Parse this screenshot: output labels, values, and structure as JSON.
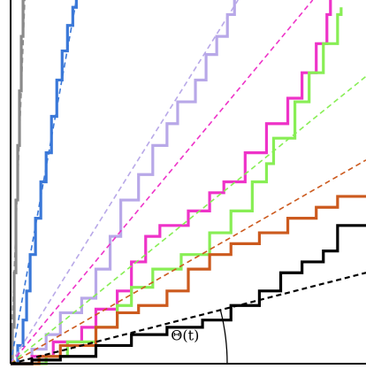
{
  "chart_data": {
    "type": "line",
    "title": "",
    "xlabel": "",
    "ylabel": "",
    "grid": false,
    "legend": "none",
    "xlim": [
      0,
      1
    ],
    "ylim": [
      0,
      1
    ],
    "annotation": {
      "label": "Θ(t)",
      "target_series": 6
    },
    "series": [
      {
        "color": "#8a8a8a",
        "trend": [
          [
            0,
            0
          ],
          [
            0.04,
            1.0
          ]
        ],
        "values": [
          [
            0,
            0
          ],
          [
            0.005,
            0.1
          ],
          [
            0.01,
            0.25
          ],
          [
            0.015,
            0.45
          ],
          [
            0.02,
            0.6
          ],
          [
            0.025,
            0.75
          ],
          [
            0.03,
            0.9
          ],
          [
            0.035,
            1.0
          ]
        ]
      },
      {
        "color": "#3a78d8",
        "trend": [
          [
            0,
            0
          ],
          [
            0.185,
            1.0
          ]
        ],
        "values": [
          [
            0,
            0
          ],
          [
            0.02,
            0.05
          ],
          [
            0.035,
            0.12
          ],
          [
            0.045,
            0.2
          ],
          [
            0.055,
            0.3
          ],
          [
            0.07,
            0.4
          ],
          [
            0.085,
            0.5
          ],
          [
            0.1,
            0.58
          ],
          [
            0.115,
            0.68
          ],
          [
            0.13,
            0.78
          ],
          [
            0.145,
            0.86
          ],
          [
            0.16,
            0.93
          ],
          [
            0.175,
            0.98
          ],
          [
            0.185,
            1.0
          ]
        ]
      },
      {
        "color": "#b8a8e8",
        "trend": [
          [
            0,
            0
          ],
          [
            0.64,
            1.0
          ]
        ],
        "values": [
          [
            0,
            0
          ],
          [
            0.06,
            0.04
          ],
          [
            0.1,
            0.08
          ],
          [
            0.14,
            0.14
          ],
          [
            0.2,
            0.18
          ],
          [
            0.24,
            0.26
          ],
          [
            0.28,
            0.35
          ],
          [
            0.31,
            0.45
          ],
          [
            0.36,
            0.52
          ],
          [
            0.4,
            0.6
          ],
          [
            0.44,
            0.66
          ],
          [
            0.47,
            0.72
          ],
          [
            0.52,
            0.78
          ],
          [
            0.55,
            0.85
          ],
          [
            0.58,
            0.9
          ],
          [
            0.61,
            0.96
          ],
          [
            0.63,
            1.0
          ]
        ]
      },
      {
        "color": "#ee33c8",
        "trend": [
          [
            0,
            0
          ],
          [
            0.85,
            1.0
          ]
        ],
        "values": [
          [
            0,
            0
          ],
          [
            0.06,
            0.02
          ],
          [
            0.12,
            0.06
          ],
          [
            0.2,
            0.1
          ],
          [
            0.24,
            0.15
          ],
          [
            0.3,
            0.2
          ],
          [
            0.34,
            0.28
          ],
          [
            0.38,
            0.35
          ],
          [
            0.42,
            0.38
          ],
          [
            0.5,
            0.42
          ],
          [
            0.56,
            0.47
          ],
          [
            0.6,
            0.5
          ],
          [
            0.66,
            0.58
          ],
          [
            0.72,
            0.66
          ],
          [
            0.78,
            0.73
          ],
          [
            0.82,
            0.8
          ],
          [
            0.86,
            0.88
          ],
          [
            0.89,
            0.96
          ],
          [
            0.9,
            1.0
          ]
        ]
      },
      {
        "color": "#88ee55",
        "trend": [
          [
            0,
            0
          ],
          [
            1.0,
            0.79
          ]
        ],
        "values": [
          [
            0,
            0
          ],
          [
            0.1,
            0.02
          ],
          [
            0.16,
            0.06
          ],
          [
            0.24,
            0.1
          ],
          [
            0.3,
            0.16
          ],
          [
            0.34,
            0.21
          ],
          [
            0.4,
            0.26
          ],
          [
            0.48,
            0.3
          ],
          [
            0.56,
            0.36
          ],
          [
            0.62,
            0.42
          ],
          [
            0.68,
            0.5
          ],
          [
            0.72,
            0.55
          ],
          [
            0.74,
            0.62
          ],
          [
            0.8,
            0.72
          ],
          [
            0.84,
            0.8
          ],
          [
            0.88,
            0.88
          ],
          [
            0.92,
            0.96
          ],
          [
            0.93,
            0.98
          ]
        ]
      },
      {
        "color": "#cc5a1e",
        "trend": [
          [
            0,
            0
          ],
          [
            1.0,
            0.56
          ]
        ],
        "values": [
          [
            0,
            0
          ],
          [
            0.08,
            0.02
          ],
          [
            0.14,
            0.05
          ],
          [
            0.24,
            0.1
          ],
          [
            0.3,
            0.14
          ],
          [
            0.36,
            0.16
          ],
          [
            0.44,
            0.2
          ],
          [
            0.5,
            0.26
          ],
          [
            0.56,
            0.3
          ],
          [
            0.62,
            0.33
          ],
          [
            0.7,
            0.36
          ],
          [
            0.78,
            0.4
          ],
          [
            0.86,
            0.43
          ],
          [
            0.92,
            0.46
          ],
          [
            0.96,
            0.46
          ],
          [
            1.0,
            0.46
          ]
        ]
      },
      {
        "color": "#000000",
        "trend": [
          [
            0,
            0
          ],
          [
            1.0,
            0.25
          ]
        ],
        "values": [
          [
            0,
            0
          ],
          [
            0.06,
            0.01
          ],
          [
            0.14,
            0.02
          ],
          [
            0.24,
            0.05
          ],
          [
            0.34,
            0.08
          ],
          [
            0.44,
            0.1
          ],
          [
            0.54,
            0.12
          ],
          [
            0.62,
            0.16
          ],
          [
            0.7,
            0.2
          ],
          [
            0.76,
            0.25
          ],
          [
            0.82,
            0.28
          ],
          [
            0.88,
            0.31
          ],
          [
            0.92,
            0.38
          ],
          [
            1.0,
            0.38
          ]
        ]
      }
    ]
  }
}
